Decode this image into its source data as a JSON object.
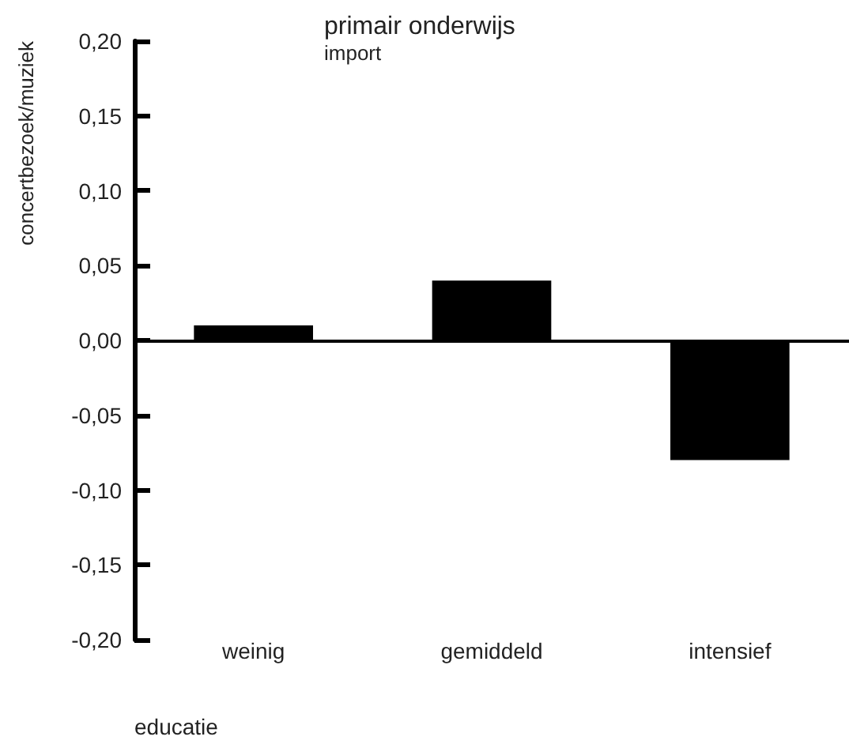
{
  "chart_data": {
    "type": "bar",
    "title": "primair onderwijs",
    "subtitle": "import",
    "ylabel": "concertbezoek/muziek",
    "xlabel": "educatie",
    "categories": [
      "weinig",
      "gemiddeld",
      "intensief"
    ],
    "values": [
      0.01,
      0.04,
      -0.08
    ],
    "color": "#000000",
    "ylim": [
      -0.2,
      0.2
    ],
    "yticks": [
      {
        "value": -0.2,
        "label": "-0,20"
      },
      {
        "value": -0.15,
        "label": "-0,15"
      },
      {
        "value": -0.1,
        "label": "-0,10"
      },
      {
        "value": -0.05,
        "label": "-0,05"
      },
      {
        "value": 0,
        "label": "0,00"
      },
      {
        "value": 0.05,
        "label": "0,05"
      },
      {
        "value": 0.1,
        "label": "0,10"
      },
      {
        "value": 0.15,
        "label": "0,15"
      },
      {
        "value": 0.2,
        "label": "0,20"
      }
    ],
    "data_labels": false
  }
}
